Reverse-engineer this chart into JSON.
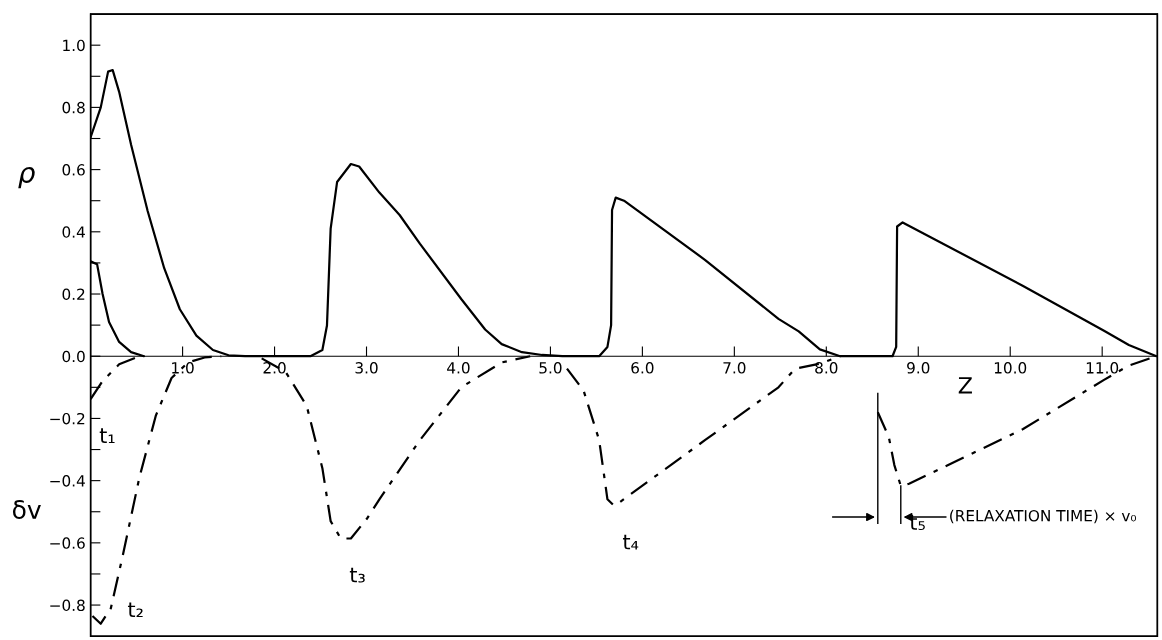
{
  "chart_data": {
    "type": "line",
    "xlabel": "Z",
    "ylabel": "ρ",
    "xlim": [
      0,
      11.6
    ],
    "ylim": [
      -0.9,
      1.1
    ],
    "xticks": [
      {
        "value": 1,
        "label": "1.0"
      },
      {
        "value": 2,
        "label": "2.0"
      },
      {
        "value": 3,
        "label": "3.0"
      },
      {
        "value": 4,
        "label": "4.0"
      },
      {
        "value": 5,
        "label": "5.0"
      },
      {
        "value": 6,
        "label": "6.0"
      },
      {
        "value": 7,
        "label": "7.0"
      },
      {
        "value": 8,
        "label": "8.0"
      },
      {
        "value": 9,
        "label": "9.0"
      },
      {
        "value": 10,
        "label": "10.0"
      },
      {
        "value": 11,
        "label": "11.0"
      }
    ],
    "yticks": [
      {
        "value": 1.0,
        "label": "1.0"
      },
      {
        "value": 0.9,
        "label": null
      },
      {
        "value": 0.8,
        "label": "0.8"
      },
      {
        "value": 0.7,
        "label": null
      },
      {
        "value": 0.6,
        "label": "0.6"
      },
      {
        "value": 0.5,
        "label": null
      },
      {
        "value": 0.4,
        "label": "0.4"
      },
      {
        "value": 0.3,
        "label": null
      },
      {
        "value": 0.2,
        "label": "0.2"
      },
      {
        "value": 0.1,
        "label": null
      },
      {
        "value": 0,
        "label": "0.0"
      },
      {
        "value": -0.1,
        "label": null
      },
      {
        "value": -0.2,
        "label": "−0.2"
      },
      {
        "value": -0.3,
        "label": null
      },
      {
        "value": -0.4,
        "label": "−0.4"
      },
      {
        "value": -0.5,
        "label": null
      },
      {
        "value": -0.6,
        "label": "−0.6"
      },
      {
        "value": -0.7,
        "label": null
      },
      {
        "value": -0.8,
        "label": "−0.8"
      }
    ],
    "grid": false,
    "legend": false,
    "series": [
      {
        "color": "#000000",
        "line_style": "solid",
        "x": [
          0,
          0.07,
          0.13,
          0.2,
          0.31,
          0.44,
          0.58
        ],
        "values": [
          0.305,
          0.296,
          0.2,
          0.11,
          0.046,
          0.013,
          0
        ]
      },
      {
        "color": "#000000",
        "line_style": "solid",
        "x": [
          0,
          0.11,
          0.19,
          0.24,
          0.31,
          0.44,
          0.62,
          0.8,
          0.97,
          1.15,
          1.33,
          1.5,
          1.68,
          2.39,
          2.52,
          2.57,
          2.61,
          2.68,
          2.83,
          2.92,
          3.14,
          3.36,
          3.58,
          4.03,
          4.29,
          4.47,
          4.69,
          4.91,
          5.13,
          5.53,
          5.62,
          5.66,
          5.67,
          5.71,
          5.8,
          6.68,
          7.48,
          7.7,
          7.93,
          8.15,
          8.72,
          8.76,
          8.77,
          8.83,
          10.14,
          11.02,
          11.29,
          11.59
        ],
        "values": [
          0.704,
          0.8,
          0.915,
          0.92,
          0.85,
          0.68,
          0.467,
          0.283,
          0.151,
          0.066,
          0.02,
          0.003,
          0,
          0,
          0.02,
          0.099,
          0.41,
          0.56,
          0.618,
          0.61,
          0.526,
          0.454,
          0.362,
          0.184,
          0.086,
          0.039,
          0.013,
          0.004,
          0,
          0,
          0.03,
          0.1,
          0.47,
          0.51,
          0.5,
          0.31,
          0.12,
          0.08,
          0.022,
          0,
          0,
          0.03,
          0.417,
          0.43,
          0.226,
          0.082,
          0.036,
          0
        ]
      },
      {
        "color": "#000000",
        "line_style": "dashed",
        "x": [
          0,
          0.13,
          0.31,
          0.53
        ],
        "values": [
          -0.138,
          -0.08,
          -0.026,
          0
        ]
      },
      {
        "color": "#000000",
        "line_style": "dashed",
        "x": [
          0.02,
          0.11,
          0.22,
          0.35,
          0.53,
          0.71,
          0.88,
          1.06,
          1.24,
          1.42
        ],
        "values": [
          -0.835,
          -0.86,
          -0.81,
          -0.64,
          -0.39,
          -0.19,
          -0.07,
          -0.02,
          -0.004,
          0
        ]
      },
      {
        "color": "#000000",
        "line_style": "dashed",
        "x": [
          1.86,
          2.12,
          2.35,
          2.52,
          2.61,
          2.72,
          2.83,
          3.01,
          3.14,
          3.58,
          4.03,
          4.47,
          4.78
        ],
        "values": [
          -0.007,
          -0.05,
          -0.16,
          -0.36,
          -0.53,
          -0.586,
          -0.586,
          -0.52,
          -0.46,
          -0.27,
          -0.1,
          -0.02,
          0
        ]
      },
      {
        "color": "#000000",
        "line_style": "dashed",
        "x": [
          5.18,
          5.36,
          5.53,
          5.62,
          5.69,
          5.75,
          6.68,
          7.48,
          7.66,
          7.93,
          8.15
        ],
        "values": [
          -0.04,
          -0.11,
          -0.27,
          -0.46,
          -0.48,
          -0.47,
          -0.27,
          -0.1,
          -0.04,
          -0.024,
          0
        ]
      },
      {
        "color": "#000000",
        "line_style": "dashed",
        "x": [
          8.56,
          8.68,
          8.74,
          8.81,
          8.9,
          10.14,
          11.02,
          11.29,
          11.59
        ],
        "values": [
          -0.18,
          -0.26,
          -0.35,
          -0.417,
          -0.41,
          -0.234,
          -0.076,
          -0.03,
          0
        ]
      }
    ],
    "annotations": [
      "δv",
      "t₁",
      "t₂",
      "t₃",
      "t₄",
      "t₅",
      "(RELAXATION TIME) × v₀"
    ]
  }
}
